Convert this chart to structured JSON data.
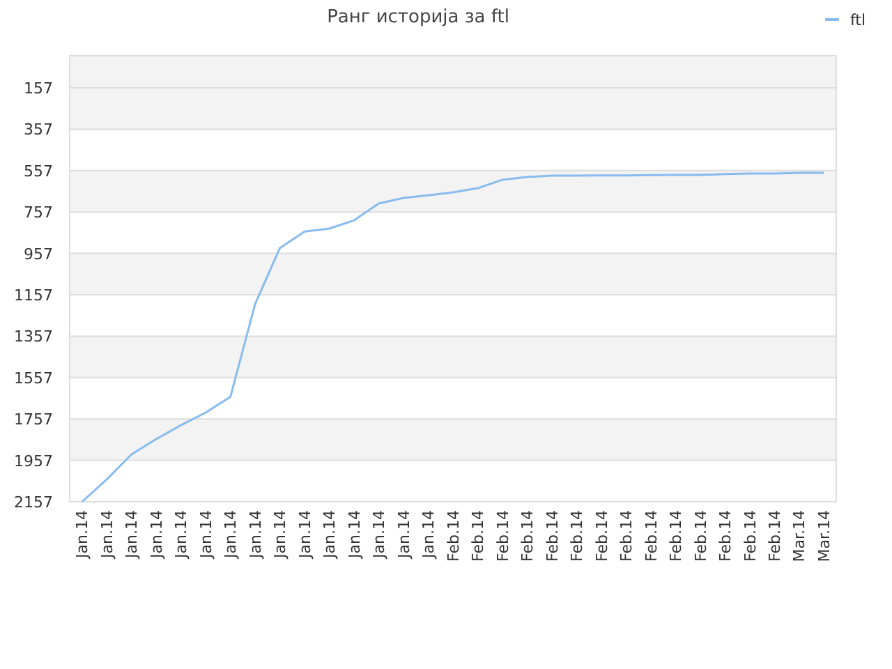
{
  "chart_data": {
    "type": "line",
    "title": "Ранг историја за ftl",
    "categories": [
      "Jan.14",
      "Jan.14",
      "Jan.14",
      "Jan.14",
      "Jan.14",
      "Jan.14",
      "Jan.14",
      "Jan.14",
      "Jan.14",
      "Jan.14",
      "Jan.14",
      "Jan.14",
      "Jan.14",
      "Jan.14",
      "Jan.14",
      "Feb.14",
      "Feb.14",
      "Feb.14",
      "Feb.14",
      "Feb.14",
      "Feb.14",
      "Feb.14",
      "Feb.14",
      "Feb.14",
      "Feb.14",
      "Feb.14",
      "Feb.14",
      "Feb.14",
      "Feb.14",
      "Mar.14",
      "Mar.14"
    ],
    "series": [
      {
        "name": "ftl",
        "color": "#88bbee",
        "values": [
          2157,
          2049,
          1928,
          1854,
          1787,
          1726,
          1650,
          1201,
          931,
          851,
          837,
          797,
          716,
          689,
          676,
          662,
          642,
          601,
          588,
          581,
          581,
          580,
          580,
          579,
          578,
          578,
          574,
          571,
          571,
          568,
          568
        ]
      }
    ],
    "ylim": [
      2157,
      2
    ],
    "yticks": [
      157,
      357,
      557,
      757,
      957,
      1157,
      1357,
      1557,
      1757,
      1957,
      2157
    ],
    "grid": "y",
    "legend": "top right",
    "marker": "none",
    "line_style": "solid"
  }
}
